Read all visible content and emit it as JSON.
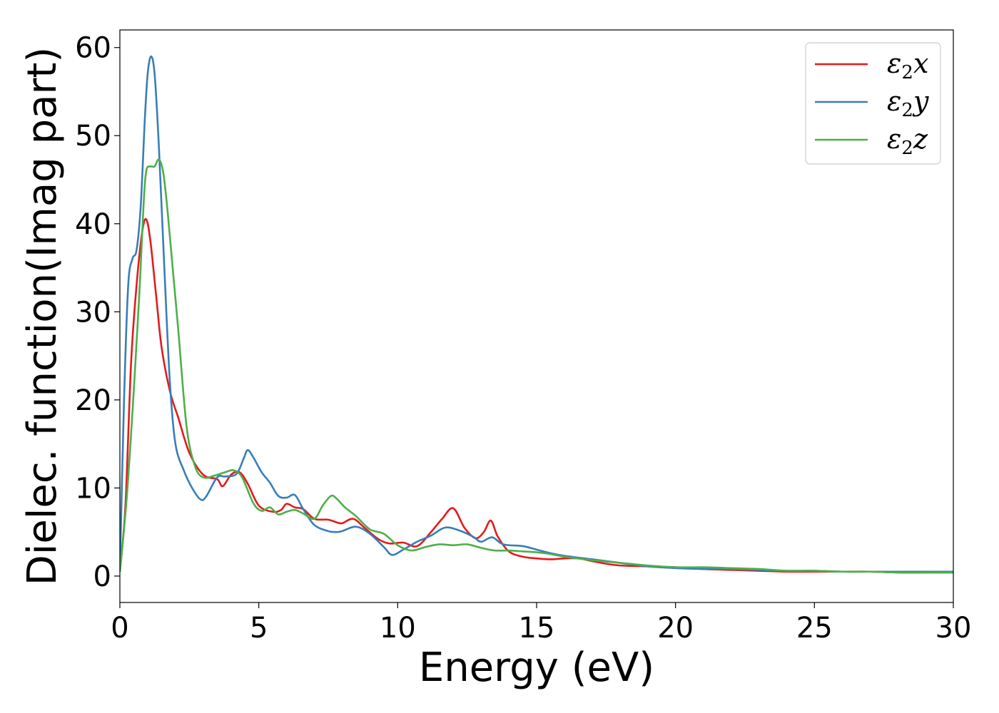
{
  "chart_data": {
    "type": "line",
    "xlabel": "Energy (eV)",
    "ylabel": "Dielec. function(Imag part)",
    "xlim": [
      0,
      30
    ],
    "ylim": [
      -3,
      62
    ],
    "xticks": [
      0,
      5,
      10,
      15,
      20,
      25,
      30
    ],
    "yticks": [
      0,
      10,
      20,
      30,
      40,
      50,
      60
    ],
    "grid": false,
    "legend_position": "top-right",
    "series": [
      {
        "name": "ε₂x",
        "legend_base": "ε",
        "legend_sub": "2",
        "legend_tail": "x",
        "color": "#e41a1c",
        "x": [
          0.0,
          0.2,
          0.4,
          0.6,
          0.8,
          0.95,
          1.1,
          1.3,
          1.5,
          1.8,
          2.1,
          2.5,
          3.0,
          3.5,
          3.7,
          4.0,
          4.3,
          4.6,
          5.0,
          5.5,
          5.8,
          6.0,
          6.3,
          6.6,
          7.0,
          7.5,
          7.8,
          8.0,
          8.4,
          8.8,
          9.3,
          9.7,
          10.2,
          10.7,
          11.2,
          11.6,
          12.0,
          12.4,
          12.8,
          13.1,
          13.35,
          13.6,
          14.0,
          14.5,
          15.0,
          15.5,
          16.0,
          16.5,
          17.0,
          17.5,
          18.0,
          19.0,
          20.0,
          21.0,
          22.0,
          23.0,
          24.0,
          25.0,
          26.0,
          27.0,
          28.0,
          29.0,
          30.0
        ],
        "y": [
          0.5,
          8,
          24,
          33,
          39,
          40.5,
          38,
          32,
          26,
          21,
          18,
          14,
          11.5,
          11,
          10.2,
          11.5,
          11.8,
          10.5,
          8,
          7.3,
          7.5,
          8.2,
          7.8,
          7.6,
          6.5,
          6.4,
          6.1,
          6,
          6.5,
          5.5,
          4.2,
          3.7,
          3.8,
          3.4,
          5,
          6.5,
          7.7,
          5.5,
          4.3,
          5,
          6.3,
          4.5,
          2.8,
          2.2,
          2.0,
          1.9,
          2.0,
          2.0,
          1.7,
          1.4,
          1.2,
          1.1,
          1.0,
          0.8,
          0.7,
          0.6,
          0.5,
          0.5,
          0.5,
          0.5,
          0.4,
          0.4,
          0.4
        ]
      },
      {
        "name": "ε₂y",
        "legend_base": "ε",
        "legend_sub": "2",
        "legend_tail": "y",
        "color": "#377eb8",
        "x": [
          0.0,
          0.15,
          0.3,
          0.45,
          0.6,
          0.75,
          0.9,
          1.0,
          1.12,
          1.25,
          1.4,
          1.6,
          1.8,
          2.0,
          2.3,
          2.6,
          2.9,
          3.1,
          3.5,
          3.8,
          4.2,
          4.45,
          4.6,
          4.8,
          5.1,
          5.4,
          5.7,
          6.0,
          6.3,
          6.6,
          7.0,
          7.5,
          7.8,
          8.0,
          8.5,
          9.0,
          9.5,
          9.8,
          10.2,
          10.7,
          11.2,
          11.7,
          12.2,
          12.7,
          13.0,
          13.4,
          13.8,
          14.5,
          15.0,
          15.5,
          16.0,
          17.0,
          18.0,
          19.0,
          20.0,
          21.0,
          22.0,
          23.0,
          24.0,
          25.0,
          26.0,
          27.0,
          28.0,
          29.0,
          30.0
        ],
        "y": [
          0.5,
          20,
          33,
          36,
          37,
          42,
          52,
          57,
          59,
          57,
          49,
          35,
          22,
          15,
          12,
          10,
          8.7,
          9,
          11.2,
          11.3,
          11.6,
          13.3,
          14.3,
          13.5,
          11.8,
          10.6,
          9.1,
          8.9,
          9.2,
          7.6,
          5.8,
          5.1,
          5.0,
          5.1,
          5.6,
          4.8,
          3.3,
          2.4,
          3.0,
          3.9,
          4.6,
          5.5,
          5.2,
          4.5,
          3.9,
          4.4,
          3.6,
          3.4,
          3.0,
          2.6,
          2.3,
          1.9,
          1.5,
          1.1,
          0.9,
          0.8,
          0.8,
          0.7,
          0.6,
          0.6,
          0.5,
          0.5,
          0.5,
          0.5,
          0.5
        ]
      },
      {
        "name": "ε₂z",
        "legend_base": "ε",
        "legend_sub": "2",
        "legend_tail": "z",
        "color": "#4daf4a",
        "x": [
          0.0,
          0.25,
          0.5,
          0.7,
          0.85,
          0.95,
          1.1,
          1.25,
          1.4,
          1.55,
          1.7,
          1.9,
          2.1,
          2.4,
          2.7,
          3.0,
          3.4,
          3.8,
          4.1,
          4.4,
          4.8,
          5.1,
          5.4,
          5.7,
          6.0,
          6.3,
          6.6,
          7.0,
          7.3,
          7.6,
          7.8,
          8.1,
          8.5,
          9.0,
          9.5,
          10.0,
          10.5,
          11.0,
          11.5,
          12.0,
          12.5,
          13.0,
          13.5,
          14.0,
          14.5,
          15.0,
          15.5,
          16.0,
          17.0,
          18.0,
          19.0,
          20.0,
          21.0,
          22.0,
          23.0,
          24.0,
          25.0,
          26.0,
          27.0,
          28.0,
          29.0,
          30.0
        ],
        "y": [
          0.5,
          9,
          21,
          32,
          42,
          46,
          46.5,
          46.5,
          47.3,
          46,
          42,
          35,
          28,
          17,
          12.5,
          11.2,
          11.4,
          11.8,
          12,
          11.2,
          8.3,
          7.4,
          7.8,
          7,
          7.3,
          7.5,
          7.1,
          6.5,
          8,
          9.1,
          8.8,
          7.8,
          6.8,
          5.3,
          4.8,
          3.5,
          2.9,
          3.3,
          3.6,
          3.5,
          3.6,
          3.2,
          2.9,
          2.9,
          2.8,
          2.7,
          2.5,
          2.2,
          1.8,
          1.5,
          1.2,
          1.0,
          1.0,
          0.9,
          0.8,
          0.6,
          0.6,
          0.5,
          0.5,
          0.4,
          0.4,
          0.4
        ]
      }
    ]
  }
}
